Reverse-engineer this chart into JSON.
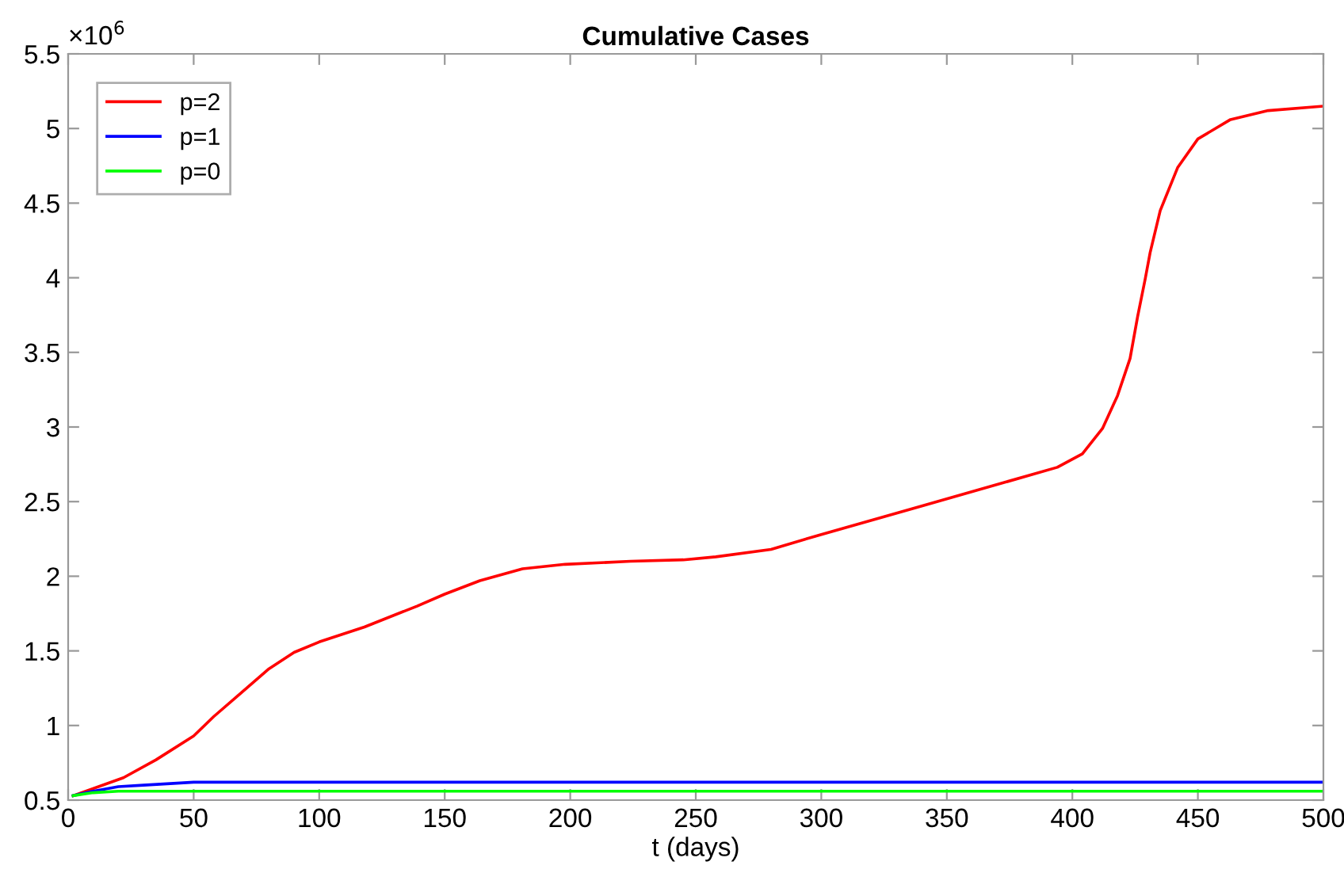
{
  "chart_data": {
    "type": "line",
    "title": "Cumulative Cases",
    "xlabel": "t (days)",
    "annotations": [
      "×10$^{6}$"
    ],
    "xlim": [
      0,
      500
    ],
    "xticks": [
      0,
      50,
      100,
      150,
      200,
      250,
      300,
      350,
      400,
      450,
      500
    ],
    "ylim": [
      0.5,
      5.5
    ],
    "yticks": [
      0.5,
      1,
      1.5,
      2,
      2.5,
      3,
      3.5,
      4,
      4.5,
      5,
      5.5
    ],
    "grid": false,
    "legend": "top left",
    "marker": "none",
    "line_style": "solid",
    "series": [
      {
        "name": "p=2",
        "color": "#ff0000",
        "x": [
          2,
          22,
          35,
          50,
          58,
          69,
          80,
          90,
          100,
          118,
          139,
          150,
          164,
          181,
          198,
          224,
          245,
          258,
          280,
          300,
          340,
          394,
          404,
          412,
          418,
          423,
          426,
          429,
          431,
          435,
          442,
          450,
          463,
          478,
          500
        ],
        "values": [
          0.53,
          0.65,
          0.77,
          0.93,
          1.06,
          1.22,
          1.38,
          1.49,
          1.56,
          1.66,
          1.8,
          1.88,
          1.97,
          2.05,
          2.08,
          2.1,
          2.11,
          2.13,
          2.18,
          2.28,
          2.47,
          2.73,
          2.82,
          2.99,
          3.21,
          3.46,
          3.74,
          3.99,
          4.17,
          4.45,
          4.74,
          4.93,
          5.06,
          5.12,
          5.15
        ]
      },
      {
        "name": "p=1",
        "color": "#0000ff",
        "x": [
          2,
          10,
          20,
          30,
          50,
          75,
          500
        ],
        "values": [
          0.53,
          0.56,
          0.59,
          0.6,
          0.62,
          0.62,
          0.62
        ]
      },
      {
        "name": "p=0",
        "color": "#00ff00",
        "x": [
          2,
          10,
          20,
          40,
          500
        ],
        "values": [
          0.53,
          0.55,
          0.56,
          0.56,
          0.56
        ]
      }
    ]
  }
}
